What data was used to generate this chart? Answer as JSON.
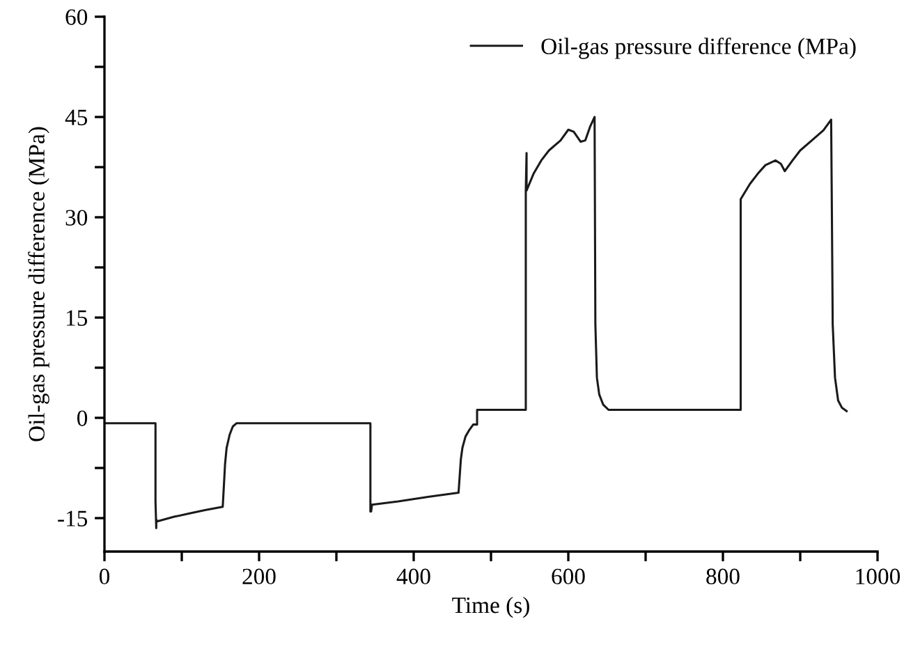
{
  "chart_data": {
    "type": "line",
    "xlabel": "Time (s)",
    "ylabel": "Oil-gas pressure difference (MPa)",
    "xlim": [
      0,
      1000
    ],
    "ylim": [
      -20,
      60
    ],
    "xticks": [
      0,
      {
        "value": 100,
        "label": null
      },
      200,
      {
        "value": 300,
        "label": null
      },
      400,
      {
        "value": 500,
        "label": null
      },
      600,
      {
        "value": 700,
        "label": null
      },
      800,
      {
        "value": 900,
        "label": null
      },
      1000
    ],
    "yticks": [
      {
        "value": -15,
        "label": "-15"
      },
      {
        "value": -7.5,
        "label": null
      },
      0,
      {
        "value": 7.5,
        "label": null
      },
      15,
      {
        "value": 22.5,
        "label": null
      },
      30,
      {
        "value": 37.5,
        "label": null
      },
      45,
      {
        "value": 52.5,
        "label": null
      },
      60
    ],
    "grid": false,
    "legend": "top right",
    "marker": "none",
    "line_style": "solid",
    "series": [
      {
        "name": "Oil-gas pressure difference (MPa)",
        "color": "#1a1a1a",
        "x": [
          0,
          66,
          66,
          67,
          67,
          68,
          90,
          110,
          130,
          153,
          156,
          158,
          162,
          166,
          171,
          250,
          344,
          344,
          345,
          346,
          380,
          420,
          458,
          461,
          463,
          467,
          472,
          477,
          482,
          482,
          545,
          545,
          546,
          546,
          555,
          565,
          575,
          590,
          600,
          607,
          616,
          622,
          628,
          634,
          635,
          637,
          640,
          645,
          652,
          700,
          823,
          823,
          835,
          845,
          855,
          868,
          875,
          880,
          890,
          900,
          915,
          930,
          940,
          941,
          942,
          945,
          949,
          954,
          960
        ],
        "values": [
          -0.8,
          -0.8,
          -12.5,
          -16.5,
          -15.2,
          -15.5,
          -14.8,
          -14.3,
          -13.8,
          -13.3,
          -6.9,
          -4.5,
          -2.5,
          -1.3,
          -0.8,
          -0.8,
          -0.8,
          -14.0,
          -14.0,
          -13.0,
          -12.5,
          -11.8,
          -11.2,
          -6.2,
          -4.5,
          -2.8,
          -1.8,
          -1.0,
          -1.0,
          1.2,
          1.2,
          34.0,
          39.6,
          34.0,
          36.5,
          38.5,
          40.0,
          41.5,
          43.1,
          42.8,
          41.3,
          41.5,
          43.5,
          45.0,
          14.0,
          6.0,
          3.5,
          2.0,
          1.2,
          1.2,
          1.2,
          32.7,
          35.0,
          36.5,
          37.8,
          38.5,
          38.0,
          36.9,
          38.5,
          40.0,
          41.5,
          43.0,
          44.6,
          30.0,
          14.0,
          6.0,
          2.6,
          1.5,
          1.0
        ]
      }
    ]
  }
}
